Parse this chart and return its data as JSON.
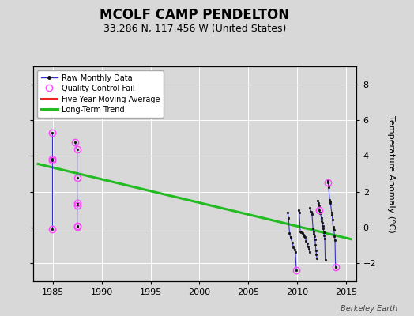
{
  "title": "MCOLF CAMP PENDELTON",
  "subtitle": "33.286 N, 117.456 W (United States)",
  "ylabel": "Temperature Anomaly (°C)",
  "credit": "Berkeley Earth",
  "xlim": [
    1983,
    2016
  ],
  "ylim": [
    -3,
    9
  ],
  "yticks": [
    -2,
    0,
    2,
    4,
    6,
    8
  ],
  "xticks": [
    1985,
    1990,
    1995,
    2000,
    2005,
    2010,
    2015
  ],
  "fig_bg": "#d8d8d8",
  "plot_bg": "#d8d8d8",
  "clusters": [
    [
      [
        1984.92,
        5.3
      ],
      [
        1984.92,
        3.85
      ],
      [
        1984.92,
        3.75
      ],
      [
        1984.92,
        -0.1
      ]
    ],
    [
      [
        1987.3,
        4.75
      ],
      [
        1987.5,
        4.35
      ],
      [
        1987.5,
        2.8
      ],
      [
        1987.5,
        1.35
      ],
      [
        1987.5,
        1.25
      ],
      [
        1987.5,
        0.1
      ],
      [
        1987.5,
        0.05
      ]
    ],
    [
      [
        2009.0,
        0.85
      ],
      [
        2009.1,
        0.55
      ],
      [
        2009.2,
        -0.3
      ],
      [
        2009.3,
        -0.55
      ],
      [
        2009.5,
        -0.85
      ],
      [
        2009.6,
        -1.1
      ],
      [
        2009.7,
        -1.25
      ],
      [
        2009.8,
        -1.35
      ],
      [
        2009.9,
        -2.4
      ]
    ],
    [
      [
        2010.1,
        0.95
      ],
      [
        2010.2,
        0.85
      ],
      [
        2010.3,
        -0.2
      ],
      [
        2010.4,
        -0.25
      ],
      [
        2010.5,
        -0.3
      ],
      [
        2010.6,
        -0.4
      ],
      [
        2010.7,
        -0.5
      ],
      [
        2010.8,
        -0.55
      ],
      [
        2010.9,
        -0.75
      ],
      [
        2011.0,
        -0.9
      ],
      [
        2011.1,
        -1.05
      ],
      [
        2011.2,
        -1.2
      ],
      [
        2011.25,
        -1.35
      ]
    ],
    [
      [
        2011.3,
        1.1
      ],
      [
        2011.4,
        0.9
      ],
      [
        2011.5,
        0.75
      ],
      [
        2011.6,
        -0.05
      ],
      [
        2011.65,
        -0.2
      ],
      [
        2011.7,
        -0.35
      ],
      [
        2011.75,
        -0.5
      ],
      [
        2011.8,
        -0.65
      ],
      [
        2011.85,
        -0.95
      ],
      [
        2011.9,
        -1.3
      ],
      [
        2011.95,
        -1.5
      ],
      [
        2012.0,
        -1.7
      ]
    ],
    [
      [
        2012.1,
        1.5
      ],
      [
        2012.15,
        1.35
      ],
      [
        2012.2,
        1.25
      ],
      [
        2012.25,
        0.95
      ],
      [
        2012.3,
        0.85
      ],
      [
        2012.35,
        0.8
      ],
      [
        2012.45,
        0.55
      ],
      [
        2012.5,
        0.35
      ],
      [
        2012.55,
        0.25
      ],
      [
        2012.6,
        0.1
      ],
      [
        2012.65,
        -0.05
      ],
      [
        2012.7,
        -0.25
      ],
      [
        2012.75,
        -0.45
      ],
      [
        2012.8,
        -0.6
      ],
      [
        2012.85,
        -1.8
      ]
    ],
    [
      [
        2013.1,
        2.6
      ],
      [
        2013.15,
        2.5
      ],
      [
        2013.2,
        2.25
      ],
      [
        2013.3,
        1.55
      ],
      [
        2013.35,
        1.45
      ],
      [
        2013.4,
        1.35
      ],
      [
        2013.5,
        0.85
      ],
      [
        2013.55,
        0.7
      ],
      [
        2013.6,
        0.45
      ],
      [
        2013.65,
        0.05
      ],
      [
        2013.7,
        -0.05
      ],
      [
        2013.75,
        -0.15
      ],
      [
        2013.8,
        -0.5
      ],
      [
        2013.85,
        -0.7
      ],
      [
        2013.9,
        -2.2
      ]
    ]
  ],
  "qc_fails": [
    [
      1984.92,
      5.3
    ],
    [
      1984.92,
      3.85
    ],
    [
      1984.92,
      3.75
    ],
    [
      1984.92,
      -0.1
    ],
    [
      1987.3,
      4.75
    ],
    [
      1987.5,
      4.35
    ],
    [
      1987.5,
      2.8
    ],
    [
      1987.5,
      1.35
    ],
    [
      1987.5,
      1.25
    ],
    [
      1987.5,
      0.1
    ],
    [
      1987.5,
      0.05
    ],
    [
      2009.9,
      -2.4
    ],
    [
      2012.25,
      0.95
    ],
    [
      2013.15,
      2.5
    ],
    [
      2013.9,
      -2.2
    ]
  ],
  "trend_x": [
    1983.5,
    2015.5
  ],
  "trend_y": [
    3.55,
    -0.65
  ],
  "raw_line_color": "#3333cc",
  "raw_marker_color": "#111111",
  "qc_color": "#ff44ff",
  "trend_color": "#22bb22",
  "mavg_color": "#ee2222",
  "title_fontsize": 12,
  "subtitle_fontsize": 9,
  "tick_labelsize": 8,
  "ylabel_fontsize": 8,
  "legend_fontsize": 7,
  "credit_fontsize": 7
}
